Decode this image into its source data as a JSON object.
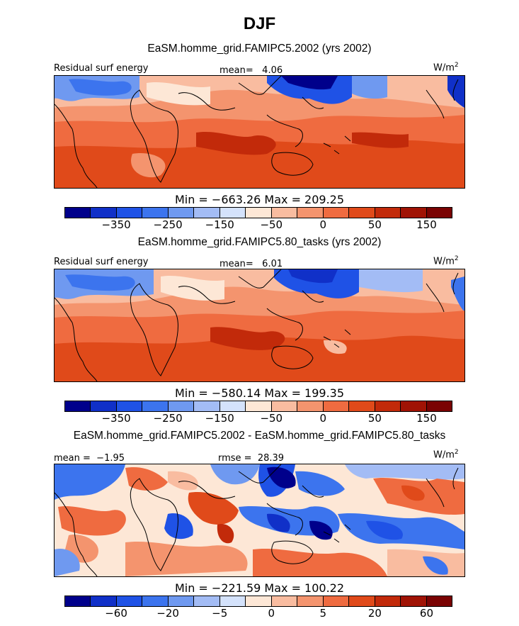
{
  "title": "DJF",
  "units_prefix": "W/m",
  "units_sup": "2",
  "chart_data": [
    {
      "type": "heatmap",
      "title": "EaSM.homme_grid.FAMIPC5.2002 (yrs 2002)",
      "variable": "Residual surf energy",
      "mean_label": "mean=",
      "mean": "4.06",
      "min_max": "Min = −663.26 Max = 209.25",
      "colorbar_levels": [
        "−350",
        "−250",
        "−150",
        "−50",
        "0",
        "50",
        "150"
      ],
      "colors": [
        "#00008b",
        "#1030c8",
        "#1f52e6",
        "#3c74ee",
        "#6f99f0",
        "#a3bcf5",
        "#d4e2fb",
        "#fde7d6",
        "#f9bca0",
        "#f4946e",
        "#ef6b40",
        "#e04a1a",
        "#c22a0a",
        "#a01305",
        "#7a0303"
      ]
    },
    {
      "type": "heatmap",
      "title": "EaSM.homme_grid.FAMIPC5.80_tasks (yrs 2002)",
      "variable": "Residual surf energy",
      "mean_label": "mean=",
      "mean": "6.01",
      "min_max": "Min = −580.14 Max = 199.35",
      "colorbar_levels": [
        "−350",
        "−250",
        "−150",
        "−50",
        "0",
        "50",
        "150"
      ],
      "colors": [
        "#00008b",
        "#1030c8",
        "#1f52e6",
        "#3c74ee",
        "#6f99f0",
        "#a3bcf5",
        "#d4e2fb",
        "#fde7d6",
        "#f9bca0",
        "#f4946e",
        "#ef6b40",
        "#e04a1a",
        "#c22a0a",
        "#a01305",
        "#7a0303"
      ]
    },
    {
      "type": "heatmap",
      "title": "EaSM.homme_grid.FAMIPC5.2002 - EaSM.homme_grid.FAMIPC5.80_tasks",
      "mean_label": "mean =",
      "mean": "−1.95",
      "rmse_label": "rmse =",
      "rmse": "28.39",
      "min_max": "Min = −221.59 Max = 100.22",
      "colorbar_levels": [
        "−60",
        "−20",
        "−5",
        "0",
        "5",
        "20",
        "60"
      ],
      "colors": [
        "#00008b",
        "#1030c8",
        "#1f52e6",
        "#3c74ee",
        "#6f99f0",
        "#a3bcf5",
        "#d4e2fb",
        "#fde7d6",
        "#f9bca0",
        "#f4946e",
        "#ef6b40",
        "#e04a1a",
        "#c22a0a",
        "#a01305",
        "#7a0303"
      ]
    }
  ]
}
